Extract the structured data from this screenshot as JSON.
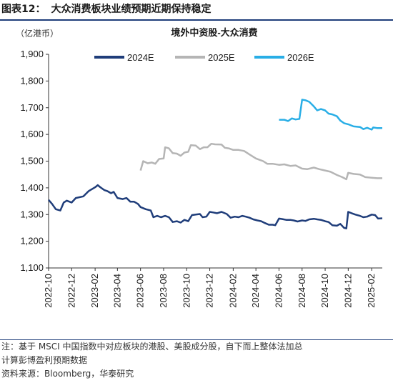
{
  "header": {
    "figure_label": "图表12：",
    "figure_title": "大众消费板块业绩预期近期保持稳定"
  },
  "chart_data": {
    "type": "line",
    "title": "境外中资股-大众消费",
    "unit_label": "（亿港币）",
    "ylim": [
      1100,
      1900
    ],
    "y_ticks": [
      "1,100",
      "1,200",
      "1,300",
      "1,400",
      "1,500",
      "1,600",
      "1,700",
      "1,800",
      "1,900"
    ],
    "x_ticks": [
      "2022-10",
      "2022-12",
      "2023-02",
      "2023-04",
      "2023-06",
      "2023-08",
      "2023-10",
      "2023-12",
      "2024-02",
      "2024-04",
      "2024-06",
      "2024-08",
      "2024-10",
      "2024-12",
      "2025-02"
    ],
    "legend_position": "top",
    "series": [
      {
        "name": "2024E",
        "color": "#1f3d7a",
        "points": [
          [
            "2022-10-01",
            1355
          ],
          [
            "2022-10-10",
            1340
          ],
          [
            "2022-10-20",
            1320
          ],
          [
            "2022-11-01",
            1315
          ],
          [
            "2022-11-10",
            1345
          ],
          [
            "2022-11-18",
            1352
          ],
          [
            "2022-12-01",
            1345
          ],
          [
            "2022-12-12",
            1362
          ],
          [
            "2023-01-01",
            1368
          ],
          [
            "2023-01-15",
            1388
          ],
          [
            "2023-02-01",
            1402
          ],
          [
            "2023-02-08",
            1410
          ],
          [
            "2023-02-15",
            1402
          ],
          [
            "2023-02-25",
            1392
          ],
          [
            "2023-03-05",
            1388
          ],
          [
            "2023-03-15",
            1380
          ],
          [
            "2023-03-22",
            1385
          ],
          [
            "2023-04-01",
            1362
          ],
          [
            "2023-04-15",
            1358
          ],
          [
            "2023-04-25",
            1362
          ],
          [
            "2023-05-05",
            1348
          ],
          [
            "2023-05-15",
            1348
          ],
          [
            "2023-05-25",
            1340
          ],
          [
            "2023-06-01",
            1328
          ],
          [
            "2023-06-15",
            1320
          ],
          [
            "2023-06-28",
            1315
          ],
          [
            "2023-07-05",
            1290
          ],
          [
            "2023-07-15",
            1295
          ],
          [
            "2023-07-25",
            1290
          ],
          [
            "2023-08-05",
            1295
          ],
          [
            "2023-08-15",
            1290
          ],
          [
            "2023-08-25",
            1272
          ],
          [
            "2023-09-05",
            1275
          ],
          [
            "2023-09-15",
            1270
          ],
          [
            "2023-09-25",
            1280
          ],
          [
            "2023-10-05",
            1275
          ],
          [
            "2023-10-15",
            1298
          ],
          [
            "2023-10-25",
            1300
          ],
          [
            "2023-11-05",
            1302
          ],
          [
            "2023-11-12",
            1290
          ],
          [
            "2023-11-22",
            1292
          ],
          [
            "2023-12-01",
            1310
          ],
          [
            "2023-12-10",
            1308
          ],
          [
            "2023-12-20",
            1305
          ],
          [
            "2024-01-01",
            1310
          ],
          [
            "2024-01-15",
            1302
          ],
          [
            "2024-01-25",
            1288
          ],
          [
            "2024-02-05",
            1292
          ],
          [
            "2024-02-15",
            1290
          ],
          [
            "2024-02-25",
            1295
          ],
          [
            "2024-03-05",
            1292
          ],
          [
            "2024-03-15",
            1288
          ],
          [
            "2024-03-25",
            1282
          ],
          [
            "2024-04-05",
            1278
          ],
          [
            "2024-04-15",
            1275
          ],
          [
            "2024-04-25",
            1268
          ],
          [
            "2024-05-05",
            1262
          ],
          [
            "2024-05-15",
            1262
          ],
          [
            "2024-05-22",
            1260
          ],
          [
            "2024-06-01",
            1285
          ],
          [
            "2024-06-10",
            1283
          ],
          [
            "2024-06-20",
            1280
          ],
          [
            "2024-07-01",
            1280
          ],
          [
            "2024-07-10",
            1278
          ],
          [
            "2024-07-20",
            1274
          ],
          [
            "2024-08-01",
            1278
          ],
          [
            "2024-08-10",
            1276
          ],
          [
            "2024-08-20",
            1282
          ],
          [
            "2024-09-01",
            1284
          ],
          [
            "2024-09-10",
            1282
          ],
          [
            "2024-09-20",
            1280
          ],
          [
            "2024-10-01",
            1275
          ],
          [
            "2024-10-10",
            1272
          ],
          [
            "2024-10-20",
            1260
          ],
          [
            "2024-11-01",
            1258
          ],
          [
            "2024-11-10",
            1265
          ],
          [
            "2024-11-20",
            1250
          ],
          [
            "2024-11-26",
            1248
          ],
          [
            "2024-12-01",
            1310
          ],
          [
            "2024-12-10",
            1305
          ],
          [
            "2024-12-20",
            1300
          ],
          [
            "2025-01-01",
            1295
          ],
          [
            "2025-01-10",
            1290
          ],
          [
            "2025-01-20",
            1292
          ],
          [
            "2025-02-01",
            1300
          ],
          [
            "2025-02-10",
            1298
          ],
          [
            "2025-02-18",
            1285
          ],
          [
            "2025-03-01",
            1286
          ]
        ]
      },
      {
        "name": "2025E",
        "color": "#b5b5b5",
        "points": [
          [
            "2023-06-01",
            1465
          ],
          [
            "2023-06-08",
            1500
          ],
          [
            "2023-06-20",
            1492
          ],
          [
            "2023-07-01",
            1495
          ],
          [
            "2023-07-10",
            1490
          ],
          [
            "2023-07-20",
            1508
          ],
          [
            "2023-08-01",
            1510
          ],
          [
            "2023-08-05",
            1552
          ],
          [
            "2023-08-15",
            1548
          ],
          [
            "2023-08-25",
            1530
          ],
          [
            "2023-09-05",
            1528
          ],
          [
            "2023-09-15",
            1520
          ],
          [
            "2023-09-25",
            1532
          ],
          [
            "2023-10-05",
            1535
          ],
          [
            "2023-10-12",
            1560
          ],
          [
            "2023-10-25",
            1558
          ],
          [
            "2023-11-05",
            1545
          ],
          [
            "2023-11-15",
            1552
          ],
          [
            "2023-11-25",
            1552
          ],
          [
            "2023-12-05",
            1565
          ],
          [
            "2023-12-15",
            1563
          ],
          [
            "2024-01-01",
            1562
          ],
          [
            "2024-01-10",
            1550
          ],
          [
            "2024-01-20",
            1548
          ],
          [
            "2024-02-01",
            1542
          ],
          [
            "2024-02-15",
            1542
          ],
          [
            "2024-03-01",
            1538
          ],
          [
            "2024-03-15",
            1525
          ],
          [
            "2024-04-01",
            1510
          ],
          [
            "2024-04-10",
            1505
          ],
          [
            "2024-04-20",
            1500
          ],
          [
            "2024-05-01",
            1490
          ],
          [
            "2024-05-15",
            1490
          ],
          [
            "2024-06-01",
            1486
          ],
          [
            "2024-06-15",
            1488
          ],
          [
            "2024-07-01",
            1482
          ],
          [
            "2024-07-15",
            1484
          ],
          [
            "2024-08-01",
            1472
          ],
          [
            "2024-08-15",
            1470
          ],
          [
            "2024-09-01",
            1476
          ],
          [
            "2024-09-15",
            1470
          ],
          [
            "2024-10-01",
            1465
          ],
          [
            "2024-10-15",
            1460
          ],
          [
            "2024-11-01",
            1448
          ],
          [
            "2024-11-15",
            1440
          ],
          [
            "2024-11-26",
            1432
          ],
          [
            "2024-12-01",
            1456
          ],
          [
            "2024-12-15",
            1452
          ],
          [
            "2025-01-01",
            1450
          ],
          [
            "2025-01-15",
            1440
          ],
          [
            "2025-02-01",
            1438
          ],
          [
            "2025-02-15",
            1436
          ],
          [
            "2025-03-01",
            1436
          ]
        ]
      },
      {
        "name": "2026E",
        "color": "#29aee6",
        "points": [
          [
            "2024-06-01",
            1655
          ],
          [
            "2024-06-15",
            1655
          ],
          [
            "2024-06-25",
            1650
          ],
          [
            "2024-07-05",
            1660
          ],
          [
            "2024-07-15",
            1656
          ],
          [
            "2024-07-25",
            1658
          ],
          [
            "2024-08-01",
            1730
          ],
          [
            "2024-08-10",
            1728
          ],
          [
            "2024-08-20",
            1722
          ],
          [
            "2024-09-01",
            1705
          ],
          [
            "2024-09-10",
            1690
          ],
          [
            "2024-09-20",
            1695
          ],
          [
            "2024-10-01",
            1690
          ],
          [
            "2024-10-10",
            1678
          ],
          [
            "2024-10-20",
            1675
          ],
          [
            "2024-11-01",
            1668
          ],
          [
            "2024-11-10",
            1652
          ],
          [
            "2024-11-20",
            1642
          ],
          [
            "2024-12-01",
            1638
          ],
          [
            "2024-12-15",
            1630
          ],
          [
            "2025-01-01",
            1628
          ],
          [
            "2025-01-10",
            1620
          ],
          [
            "2025-01-20",
            1625
          ],
          [
            "2025-02-01",
            1618
          ],
          [
            "2025-02-05",
            1626
          ],
          [
            "2025-02-15",
            1624
          ],
          [
            "2025-03-01",
            1624
          ]
        ]
      }
    ]
  },
  "footer": {
    "note_line1": "注：基于 MSCI 中国指数中对应板块的港股、美股成分股，自下而上整体法加总",
    "note_line2": "计算彭博盈利预期数据",
    "source": "资料来源：Bloomberg，华泰研究"
  }
}
